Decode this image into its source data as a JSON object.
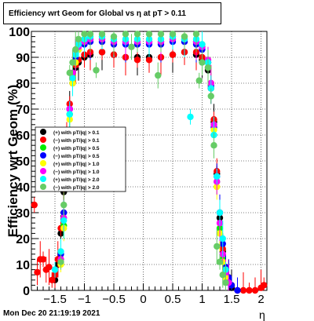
{
  "title": "Efficiency wrt Geom for Global vs  η at pT > 0.11",
  "footer": "Mon Dec 20 21:19:19 2021",
  "chart_data": {
    "type": "scatter",
    "xlabel": "η",
    "ylabel": "Efficiency wrt Geom (%)",
    "xlim": [
      -1.9,
      2.1
    ],
    "ylim": [
      0,
      100
    ],
    "x_ticks": [
      "−1.5",
      "−1",
      "−0.5",
      "0",
      "0.5",
      "1",
      "1.5",
      "2"
    ],
    "y_ticks": [
      "0",
      "10",
      "20",
      "30",
      "40",
      "50",
      "60",
      "70",
      "80",
      "90",
      "100"
    ],
    "grid": true,
    "legend_position": "left-middle",
    "series": [
      {
        "name": "(+) with pT/|q| > 0.1",
        "color": "#000000",
        "x": [
          -1.5,
          -1.45,
          -1.4,
          -1.35,
          -1.3,
          -1.25,
          -1.2,
          -1.15,
          -1.1,
          -1.0,
          -0.9,
          -0.7,
          -0.5,
          -0.3,
          -0.1,
          0.1,
          0.3,
          0.5,
          0.7,
          0.9,
          1.0,
          1.1,
          1.15,
          1.2,
          1.25,
          1.3,
          1.35,
          1.4,
          1.45,
          1.5
        ],
        "y": [
          4,
          10,
          22,
          38,
          55,
          70,
          80,
          86,
          88,
          90,
          91,
          92,
          91,
          90,
          90,
          90,
          90,
          91,
          92,
          91,
          89,
          85,
          78,
          65,
          45,
          28,
          15,
          8,
          4,
          1
        ]
      },
      {
        "name": "(−) with pT/|q| > 0.1",
        "color": "#ff0000",
        "x": [
          -1.85,
          -1.8,
          -1.75,
          -1.7,
          -1.65,
          -1.6,
          -1.55,
          -1.5,
          -1.45,
          -1.4,
          -1.35,
          -1.3,
          -1.25,
          -1.2,
          -1.15,
          -1.1,
          -1.0,
          -0.9,
          -0.7,
          -0.5,
          -0.3,
          -0.1,
          0.1,
          0.3,
          0.5,
          0.7,
          0.9,
          1.0,
          1.1,
          1.15,
          1.2,
          1.25,
          1.3,
          1.35,
          1.4,
          1.45,
          1.5,
          1.6,
          1.7,
          1.8,
          1.9,
          2.0,
          2.05
        ],
        "y": [
          33,
          7,
          12,
          12,
          8,
          9,
          4,
          6,
          12,
          24,
          40,
          58,
          72,
          82,
          87,
          89,
          91,
          92,
          92,
          91,
          90,
          89,
          89,
          90,
          91,
          92,
          92,
          90,
          86,
          80,
          66,
          46,
          30,
          16,
          9,
          5,
          2,
          0,
          0,
          0,
          0,
          1,
          2
        ]
      },
      {
        "name": "(+) with pT/|q| > 0.5",
        "color": "#00ee00",
        "x": [
          -1.4,
          -1.35,
          -1.3,
          -1.25,
          -1.2,
          -1.15,
          -1.1,
          -1.0,
          -0.9,
          -0.7,
          -0.5,
          -0.3,
          -0.1,
          0.1,
          0.3,
          0.5,
          0.7,
          0.9,
          1.0,
          1.1,
          1.15,
          1.2,
          1.25,
          1.3,
          1.35,
          1.4
        ],
        "y": [
          12,
          25,
          48,
          68,
          82,
          90,
          94,
          96,
          97,
          97,
          96,
          96,
          96,
          96,
          96,
          97,
          97,
          96,
          94,
          88,
          80,
          64,
          42,
          24,
          12,
          5
        ]
      },
      {
        "name": "(−) with pT/|q| > 0.5",
        "color": "#0000ff",
        "x": [
          -1.4,
          -1.35,
          -1.3,
          -1.25,
          -1.2,
          -1.15,
          -1.1,
          -1.0,
          -0.9,
          -0.7,
          -0.5,
          -0.3,
          -0.1,
          0.1,
          0.3,
          0.5,
          0.7,
          0.9,
          1.0,
          1.1,
          1.15,
          1.2,
          1.25,
          1.3,
          1.35,
          1.4,
          1.45,
          1.5,
          1.6
        ],
        "y": [
          14,
          30,
          52,
          70,
          83,
          90,
          93,
          95,
          96,
          96,
          95,
          95,
          95,
          95,
          95,
          96,
          96,
          95,
          93,
          88,
          79,
          63,
          44,
          30,
          18,
          9,
          5,
          2,
          0
        ]
      },
      {
        "name": "(+) with pT/|q| > 1.0",
        "color": "#ffff00",
        "x": [
          -1.4,
          -1.35,
          -1.3,
          -1.25,
          -1.2,
          -1.15,
          -1.1,
          -1.0,
          -0.9,
          -0.7,
          -0.5,
          -0.3,
          -0.1,
          0.1,
          0.3,
          0.5,
          0.7,
          0.9,
          1.0,
          1.1,
          1.15,
          1.2,
          1.25,
          1.3,
          1.35,
          1.4
        ],
        "y": [
          10,
          24,
          46,
          66,
          80,
          88,
          93,
          96,
          98,
          98,
          97,
          97,
          97,
          97,
          97,
          98,
          98,
          97,
          95,
          89,
          80,
          62,
          40,
          22,
          11,
          5
        ]
      },
      {
        "name": "(−) with pT/|q| > 1.0",
        "color": "#ff00ff",
        "x": [
          -1.4,
          -1.35,
          -1.3,
          -1.25,
          -1.2,
          -1.15,
          -1.1,
          -1.0,
          -0.9,
          -0.7,
          -0.5,
          -0.3,
          -0.1,
          0.1,
          0.3,
          0.5,
          0.7,
          0.9,
          1.0,
          1.1,
          1.15,
          1.2,
          1.25,
          1.3,
          1.35,
          1.4,
          1.45
        ],
        "y": [
          12,
          28,
          50,
          70,
          84,
          91,
          94,
          96,
          97,
          97,
          96,
          96,
          96,
          96,
          96,
          97,
          97,
          96,
          94,
          89,
          80,
          64,
          42,
          26,
          14,
          7,
          3
        ]
      },
      {
        "name": "(+) with pT/|q| > 2.0",
        "color": "#00ffff",
        "x": [
          -1.5,
          -1.4,
          -1.35,
          -1.3,
          -1.25,
          -1.2,
          -1.15,
          -1.1,
          -1.0,
          -0.9,
          -0.7,
          -0.5,
          -0.3,
          -0.1,
          0.1,
          0.3,
          0.5,
          0.7,
          0.8,
          0.9,
          1.0,
          1.1,
          1.15,
          1.2,
          1.25,
          1.3,
          1.35,
          1.4
        ],
        "y": [
          8,
          15,
          27,
          50,
          68,
          82,
          91,
          95,
          97,
          98,
          98,
          97,
          97,
          97,
          97,
          97,
          98,
          97,
          67,
          97,
          95,
          88,
          78,
          60,
          44,
          30,
          20,
          8
        ]
      },
      {
        "name": "(−) with pT/|q| > 2.0",
        "color": "#66cc66",
        "x": [
          -1.4,
          -1.35,
          -1.3,
          -1.25,
          -1.2,
          -1.15,
          -1.1,
          -1.0,
          -0.9,
          -0.8,
          -0.7,
          -0.5,
          -0.3,
          -0.2,
          -0.1,
          0.1,
          0.25,
          0.3,
          0.5,
          0.7,
          0.9,
          0.95,
          1.0,
          1.1,
          1.15,
          1.2,
          1.25,
          1.3,
          1.35,
          1.4
        ],
        "y": [
          11,
          33,
          55,
          84,
          88,
          93,
          97,
          99,
          99,
          85,
          99,
          98,
          99,
          94,
          99,
          99,
          83,
          99,
          99,
          98,
          99,
          81,
          88,
          86,
          75,
          56,
          17,
          11,
          6,
          3
        ]
      }
    ]
  }
}
